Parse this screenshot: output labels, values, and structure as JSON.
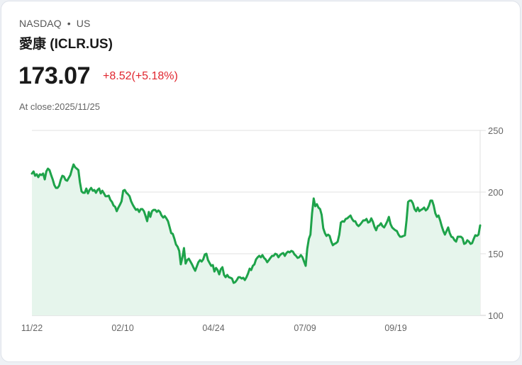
{
  "header": {
    "exchange": "NASDAQ",
    "separator": "•",
    "market": "US",
    "title": "愛康 (ICLR.US)",
    "price": "173.07",
    "change": "+8.52(+5.18%)",
    "close_label": "At close:2025/11/25"
  },
  "colors": {
    "line": "#1ea34a",
    "fill": "#e6f5ec",
    "change": "#e0262f",
    "grid": "#e0e0e0"
  },
  "chart_data": {
    "type": "area",
    "title": "愛康 (ICLR.US)",
    "xlabel": "",
    "ylabel": "",
    "ylim": [
      100,
      250
    ],
    "yticks": [
      "250",
      "200",
      "150",
      "100"
    ],
    "xticks": [
      "11/22",
      "02/10",
      "04/24",
      "07/09",
      "09/19"
    ],
    "grid": true,
    "y_axis_position": "right",
    "series": [
      {
        "name": "ICLR.US",
        "values": [
          215.0,
          216.7,
          213.2,
          214.4,
          212.1,
          214.4,
          213.8,
          215.0,
          210.3,
          216.7,
          219.0,
          217.8,
          213.8,
          210.3,
          205.7,
          203.4,
          203.4,
          205.2,
          209.8,
          213.2,
          212.6,
          209.8,
          209.2,
          211.5,
          213.8,
          218.4,
          222.4,
          220.1,
          219.0,
          217.8,
          208.0,
          200.6,
          199.4,
          199.4,
          202.9,
          198.9,
          201.7,
          203.4,
          201.1,
          201.7,
          199.4,
          201.7,
          202.9,
          198.9,
          201.1,
          198.9,
          196.6,
          196.6,
          197.1,
          193.7,
          192.0,
          189.1,
          188.0,
          184.5,
          187.4,
          189.7,
          192.5,
          201.1,
          201.7,
          199.4,
          198.3,
          196.6,
          192.5,
          189.7,
          187.4,
          185.6,
          186.2,
          183.9,
          186.2,
          186.2,
          184.5,
          180.5,
          176.4,
          183.9,
          179.9,
          184.5,
          185.6,
          185.6,
          183.9,
          185.1,
          183.9,
          181.0,
          179.3,
          180.5,
          178.7,
          176.4,
          171.8,
          166.7,
          166.1,
          162.1,
          157.5,
          155.7,
          152.3,
          141.4,
          147.1,
          154.6,
          142.0,
          144.8,
          146.0,
          143.7,
          141.4,
          138.5,
          136.2,
          139.7,
          143.1,
          144.8,
          143.7,
          145.4,
          149.4,
          150.0,
          144.8,
          142.5,
          140.2,
          140.8,
          135.6,
          138.5,
          136.8,
          133.3,
          137.4,
          139.1,
          132.8,
          131.0,
          132.8,
          131.0,
          130.5,
          129.9,
          126.4,
          127.0,
          128.7,
          131.0,
          131.0,
          129.9,
          130.5,
          128.7,
          131.0,
          133.9,
          137.9,
          136.8,
          140.2,
          141.4,
          145.4,
          147.1,
          148.3,
          147.1,
          148.9,
          146.6,
          145.4,
          143.1,
          144.8,
          146.6,
          148.3,
          148.3,
          150.0,
          149.4,
          147.1,
          148.9,
          150.0,
          150.6,
          148.3,
          150.6,
          151.7,
          151.1,
          152.3,
          151.7,
          149.4,
          148.3,
          146.6,
          147.1,
          148.9,
          147.1,
          143.7,
          140.2,
          154.0,
          162.1,
          165.5,
          182.8,
          194.8,
          188.5,
          190.2,
          187.4,
          186.2,
          181.6,
          170.7,
          166.7,
          164.4,
          165.5,
          164.4,
          159.8,
          156.9,
          158.0,
          158.6,
          159.8,
          165.5,
          175.3,
          176.4,
          175.9,
          178.2,
          178.7,
          179.9,
          181.0,
          178.2,
          176.4,
          176.4,
          173.6,
          172.4,
          173.6,
          175.3,
          177.0,
          177.0,
          178.2,
          175.3,
          175.9,
          178.7,
          175.9,
          171.8,
          169.0,
          172.4,
          173.0,
          174.7,
          172.4,
          171.3,
          173.6,
          176.4,
          179.9,
          174.1,
          171.3,
          170.1,
          169.0,
          168.4,
          165.5,
          163.8,
          163.8,
          164.4,
          164.9,
          177.0,
          192.0,
          193.1,
          193.1,
          190.8,
          186.2,
          184.5,
          187.4,
          184.5,
          185.6,
          186.2,
          187.4,
          185.1,
          186.2,
          189.1,
          193.1,
          193.1,
          189.1,
          182.8,
          179.9,
          181.0,
          177.0,
          172.4,
          168.4,
          165.5,
          168.4,
          171.3,
          166.7,
          163.8,
          163.2,
          160.9,
          159.8,
          163.8,
          163.8,
          163.8,
          162.6,
          158.0,
          158.6,
          160.9,
          159.8,
          158.0,
          158.6,
          162.1,
          165.0,
          164.4,
          165.5,
          173.0
        ]
      }
    ]
  }
}
